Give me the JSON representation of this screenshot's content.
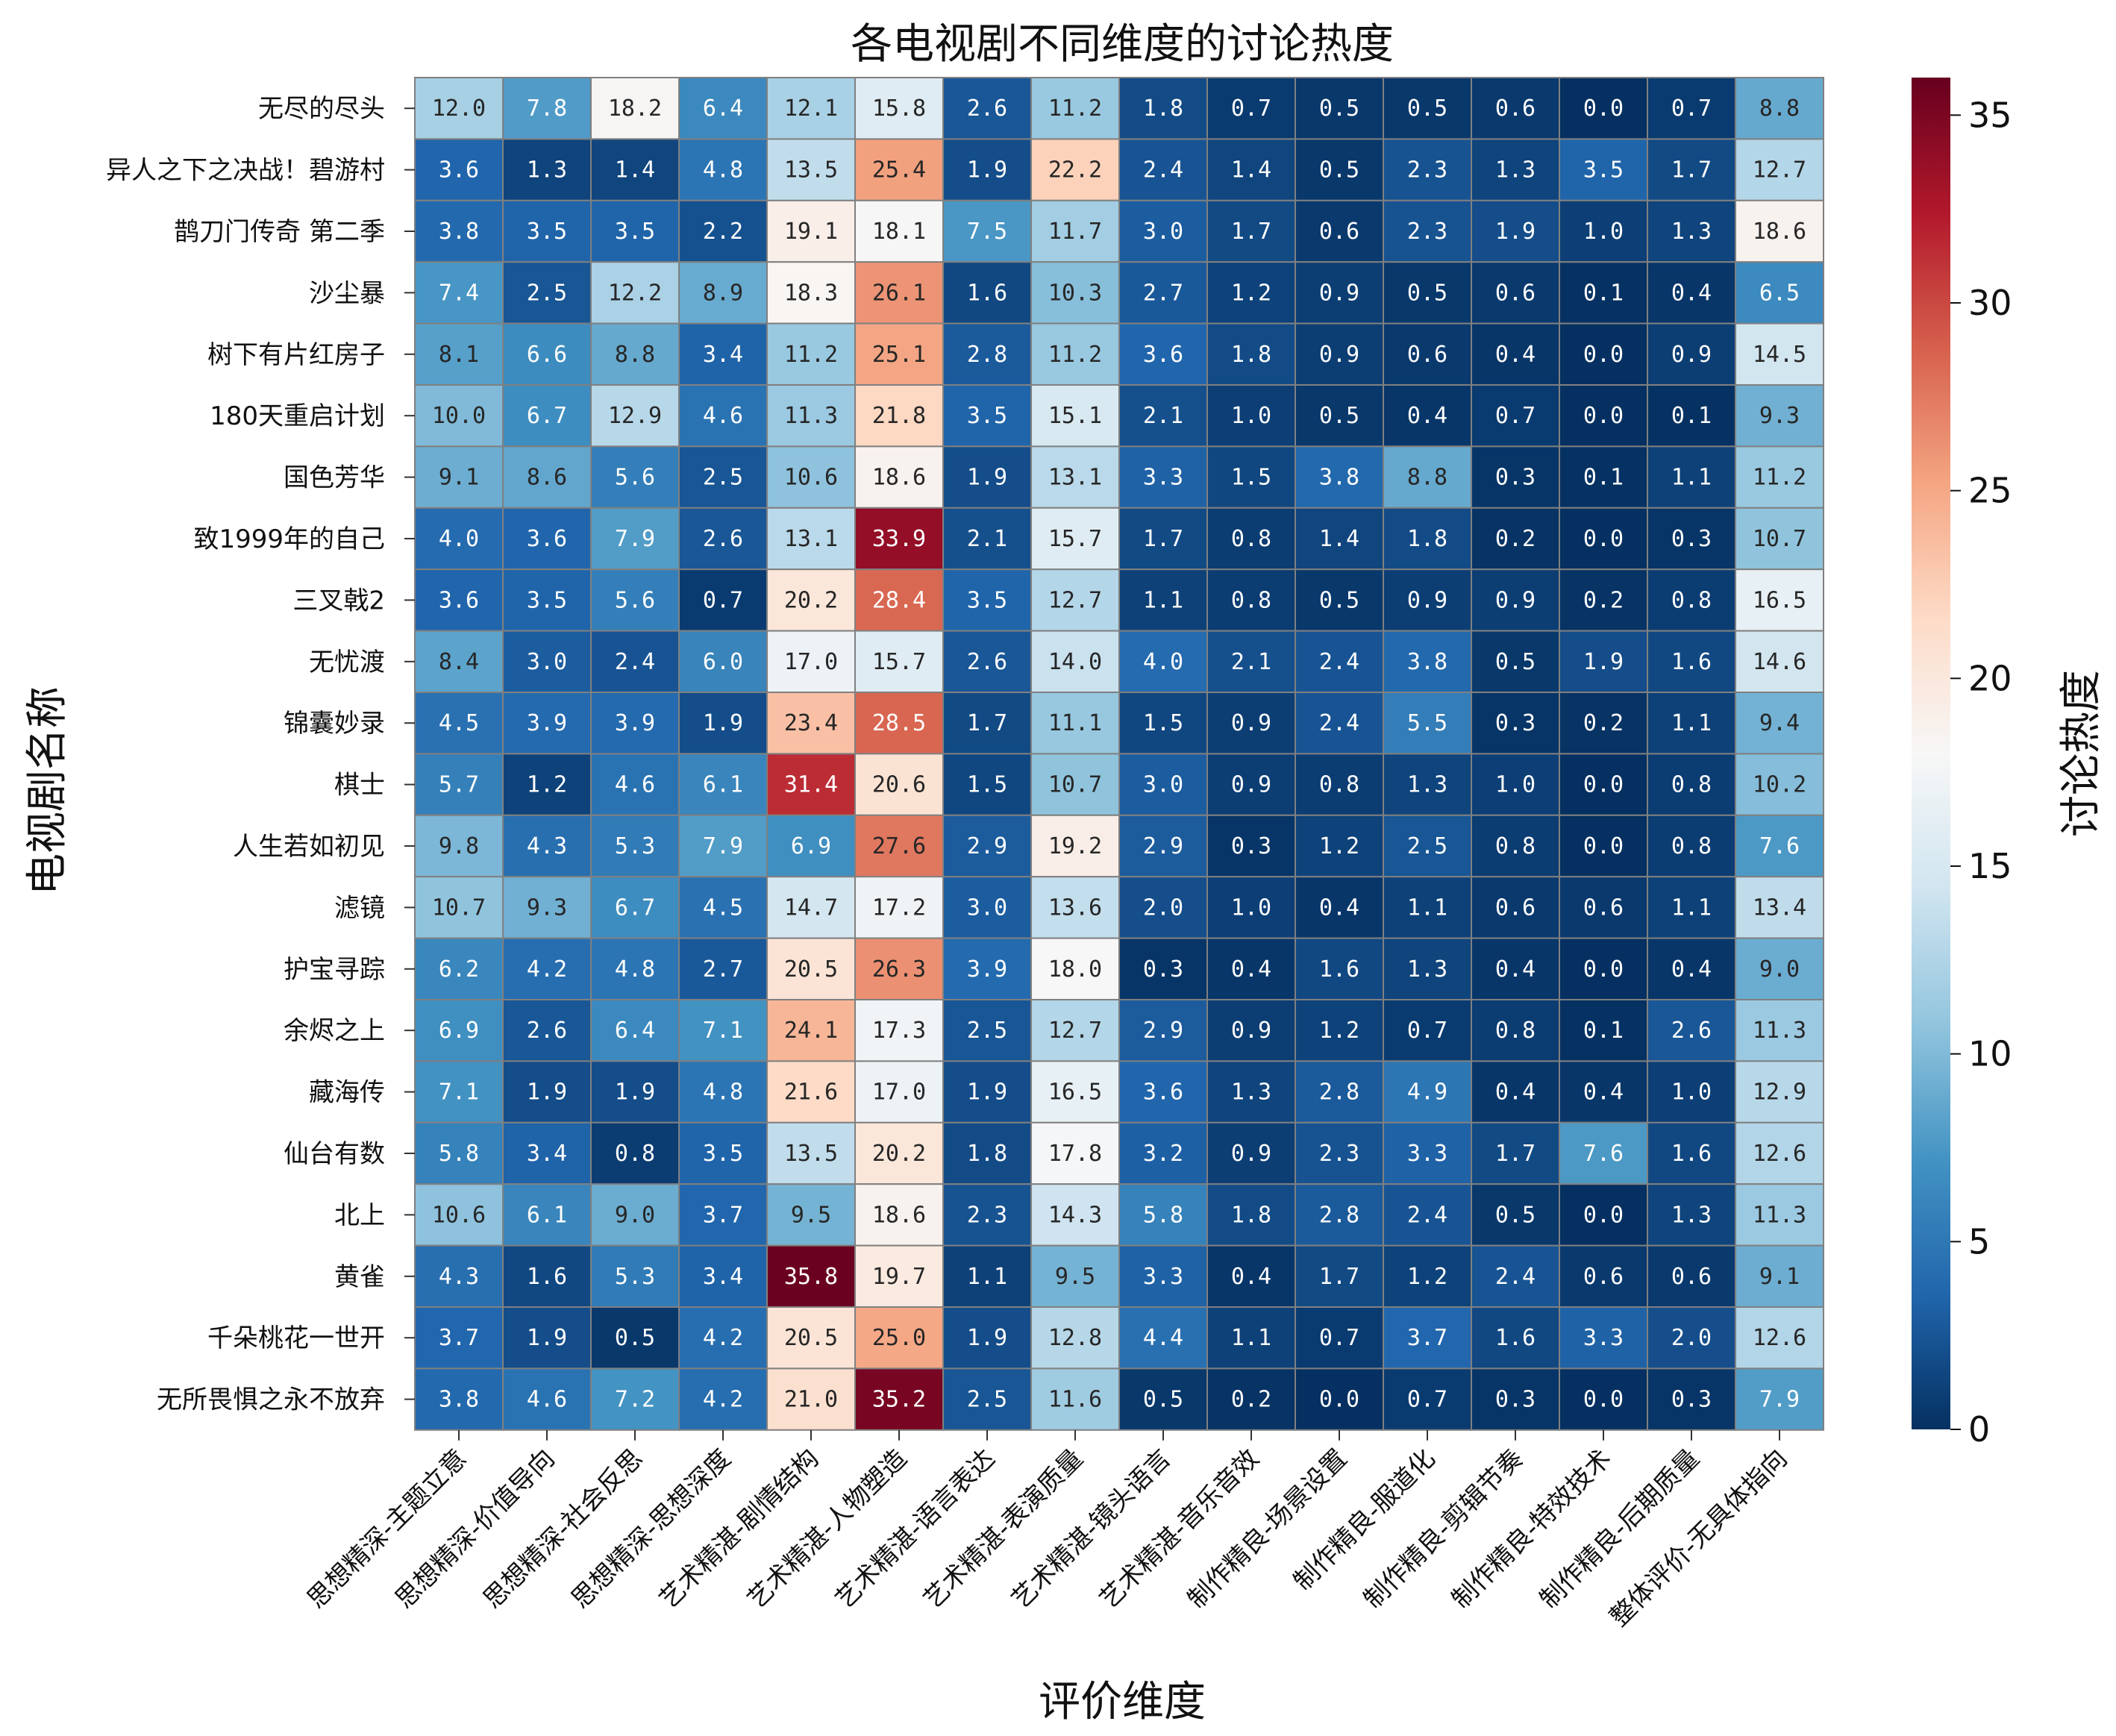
{
  "chart_data": {
    "type": "heatmap",
    "title": "各电视剧不同维度的讨论热度",
    "xlabel": "评价维度",
    "ylabel": "电视剧名称",
    "colorbar_label": "讨论热度",
    "colormap": "RdBu_r",
    "vmin": 0,
    "vmax": 36,
    "colorbar_ticks": [
      "0",
      "5",
      "10",
      "15",
      "20",
      "25",
      "30",
      "35"
    ],
    "columns": [
      "思想精深-主题立意",
      "思想精深-价值导向",
      "思想精深-社会反思",
      "思想精深-思想深度",
      "艺术精湛-剧情结构",
      "艺术精湛-人物塑造",
      "艺术精湛-语言表达",
      "艺术精湛-表演质量",
      "艺术精湛-镜头语言",
      "艺术精湛-音乐音效",
      "制作精良-场景设置",
      "制作精良-服道化",
      "制作精良-剪辑节奏",
      "制作精良-特效技术",
      "制作精良-后期质量",
      "整体评价-无具体指向"
    ],
    "rows": [
      "无尽的尽头",
      "异人之下之决战！碧游村",
      "鹊刀门传奇 第二季",
      "沙尘暴",
      "树下有片红房子",
      "180天重启计划",
      "国色芳华",
      "致1999年的自己",
      "三叉戟2",
      "无忧渡",
      "锦囊妙录",
      "棋士",
      "人生若如初见",
      "滤镜",
      "护宝寻踪",
      "余烬之上",
      "藏海传",
      "仙台有数",
      "北上",
      "黄雀",
      "千朵桃花一世开",
      "无所畏惧之永不放弃"
    ],
    "values": [
      [
        "12.0",
        "7.8",
        "18.2",
        "6.4",
        "12.1",
        "15.8",
        "2.6",
        "11.2",
        "1.8",
        "0.7",
        "0.5",
        "0.5",
        "0.6",
        "0.0",
        "0.7",
        "8.8"
      ],
      [
        "3.6",
        "1.3",
        "1.4",
        "4.8",
        "13.5",
        "25.4",
        "1.9",
        "22.2",
        "2.4",
        "1.4",
        "0.5",
        "2.3",
        "1.3",
        "3.5",
        "1.7",
        "12.7"
      ],
      [
        "3.8",
        "3.5",
        "3.5",
        "2.2",
        "19.1",
        "18.1",
        "7.5",
        "11.7",
        "3.0",
        "1.7",
        "0.6",
        "2.3",
        "1.9",
        "1.0",
        "1.3",
        "18.6"
      ],
      [
        "7.4",
        "2.5",
        "12.2",
        "8.9",
        "18.3",
        "26.1",
        "1.6",
        "10.3",
        "2.7",
        "1.2",
        "0.9",
        "0.5",
        "0.6",
        "0.1",
        "0.4",
        "6.5"
      ],
      [
        "8.1",
        "6.6",
        "8.8",
        "3.4",
        "11.2",
        "25.1",
        "2.8",
        "11.2",
        "3.6",
        "1.8",
        "0.9",
        "0.6",
        "0.4",
        "0.0",
        "0.9",
        "14.5"
      ],
      [
        "10.0",
        "6.7",
        "12.9",
        "4.6",
        "11.3",
        "21.8",
        "3.5",
        "15.1",
        "2.1",
        "1.0",
        "0.5",
        "0.4",
        "0.7",
        "0.0",
        "0.1",
        "9.3"
      ],
      [
        "9.1",
        "8.6",
        "5.6",
        "2.5",
        "10.6",
        "18.6",
        "1.9",
        "13.1",
        "3.3",
        "1.5",
        "3.8",
        "8.8",
        "0.3",
        "0.1",
        "1.1",
        "11.2"
      ],
      [
        "4.0",
        "3.6",
        "7.9",
        "2.6",
        "13.1",
        "33.9",
        "2.1",
        "15.7",
        "1.7",
        "0.8",
        "1.4",
        "1.8",
        "0.2",
        "0.0",
        "0.3",
        "10.7"
      ],
      [
        "3.6",
        "3.5",
        "5.6",
        "0.7",
        "20.2",
        "28.4",
        "3.5",
        "12.7",
        "1.1",
        "0.8",
        "0.5",
        "0.9",
        "0.9",
        "0.2",
        "0.8",
        "16.5"
      ],
      [
        "8.4",
        "3.0",
        "2.4",
        "6.0",
        "17.0",
        "15.7",
        "2.6",
        "14.0",
        "4.0",
        "2.1",
        "2.4",
        "3.8",
        "0.5",
        "1.9",
        "1.6",
        "14.6"
      ],
      [
        "4.5",
        "3.9",
        "3.9",
        "1.9",
        "23.4",
        "28.5",
        "1.7",
        "11.1",
        "1.5",
        "0.9",
        "2.4",
        "5.5",
        "0.3",
        "0.2",
        "1.1",
        "9.4"
      ],
      [
        "5.7",
        "1.2",
        "4.6",
        "6.1",
        "31.4",
        "20.6",
        "1.5",
        "10.7",
        "3.0",
        "0.9",
        "0.8",
        "1.3",
        "1.0",
        "0.0",
        "0.8",
        "10.2"
      ],
      [
        "9.8",
        "4.3",
        "5.3",
        "7.9",
        "6.9",
        "27.6",
        "2.9",
        "19.2",
        "2.9",
        "0.3",
        "1.2",
        "2.5",
        "0.8",
        "0.0",
        "0.8",
        "7.6"
      ],
      [
        "10.7",
        "9.3",
        "6.7",
        "4.5",
        "14.7",
        "17.2",
        "3.0",
        "13.6",
        "2.0",
        "1.0",
        "0.4",
        "1.1",
        "0.6",
        "0.6",
        "1.1",
        "13.4"
      ],
      [
        "6.2",
        "4.2",
        "4.8",
        "2.7",
        "20.5",
        "26.3",
        "3.9",
        "18.0",
        "0.3",
        "0.4",
        "1.6",
        "1.3",
        "0.4",
        "0.0",
        "0.4",
        "9.0"
      ],
      [
        "6.9",
        "2.6",
        "6.4",
        "7.1",
        "24.1",
        "17.3",
        "2.5",
        "12.7",
        "2.9",
        "0.9",
        "1.2",
        "0.7",
        "0.8",
        "0.1",
        "2.6",
        "11.3"
      ],
      [
        "7.1",
        "1.9",
        "1.9",
        "4.8",
        "21.6",
        "17.0",
        "1.9",
        "16.5",
        "3.6",
        "1.3",
        "2.8",
        "4.9",
        "0.4",
        "0.4",
        "1.0",
        "12.9"
      ],
      [
        "5.8",
        "3.4",
        "0.8",
        "3.5",
        "13.5",
        "20.2",
        "1.8",
        "17.8",
        "3.2",
        "0.9",
        "2.3",
        "3.3",
        "1.7",
        "7.6",
        "1.6",
        "12.6"
      ],
      [
        "10.6",
        "6.1",
        "9.0",
        "3.7",
        "9.5",
        "18.6",
        "2.3",
        "14.3",
        "5.8",
        "1.8",
        "2.8",
        "2.4",
        "0.5",
        "0.0",
        "1.3",
        "11.3"
      ],
      [
        "4.3",
        "1.6",
        "5.3",
        "3.4",
        "35.8",
        "19.7",
        "1.1",
        "9.5",
        "3.3",
        "0.4",
        "1.7",
        "1.2",
        "2.4",
        "0.6",
        "0.6",
        "9.1"
      ],
      [
        "3.7",
        "1.9",
        "0.5",
        "4.2",
        "20.5",
        "25.0",
        "1.9",
        "12.8",
        "4.4",
        "1.1",
        "0.7",
        "3.7",
        "1.6",
        "3.3",
        "2.0",
        "12.6"
      ],
      [
        "3.8",
        "4.6",
        "7.2",
        "4.2",
        "21.0",
        "35.2",
        "2.5",
        "11.6",
        "0.5",
        "0.2",
        "0.0",
        "0.7",
        "0.3",
        "0.0",
        "0.3",
        "7.9"
      ]
    ]
  }
}
